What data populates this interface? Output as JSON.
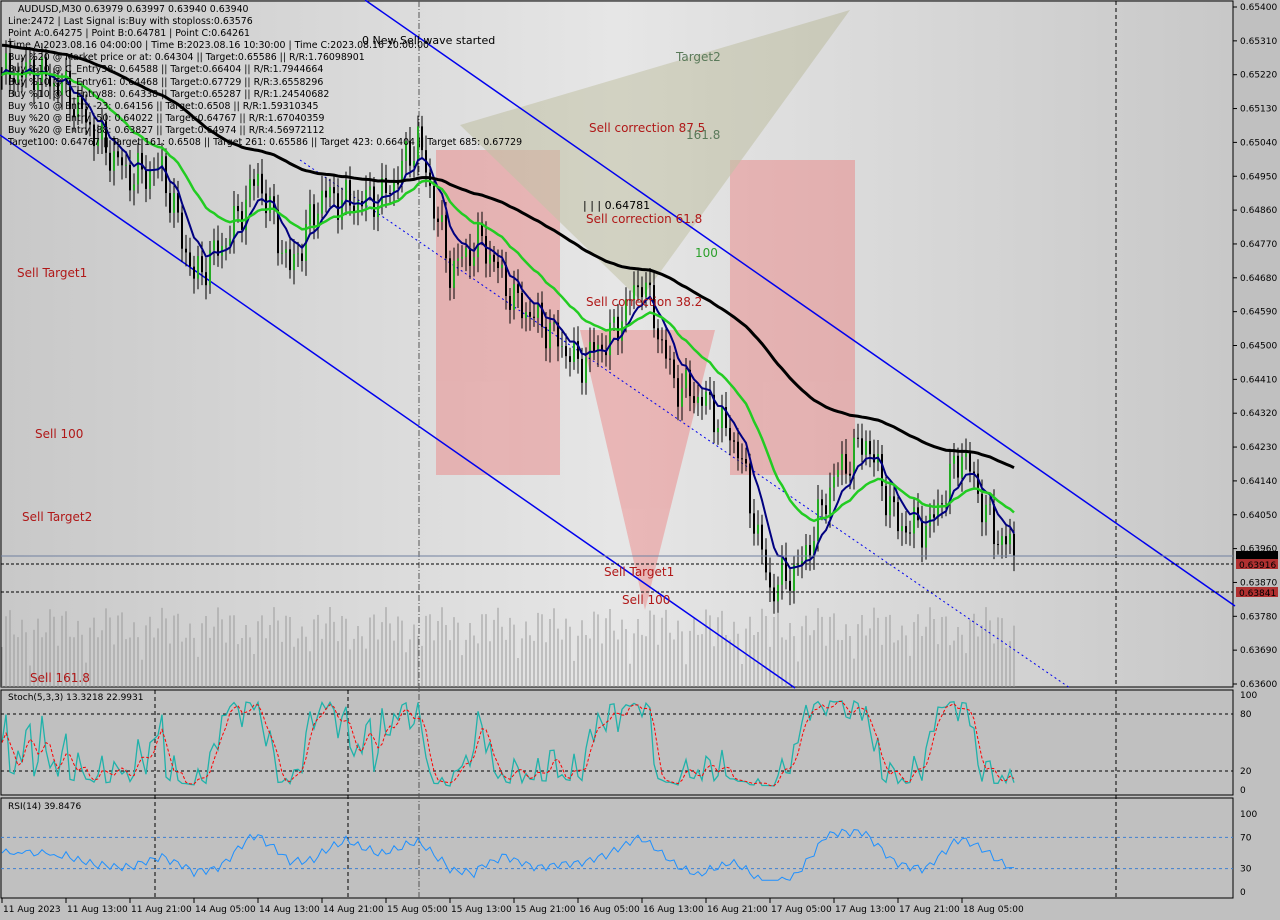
{
  "header": {
    "symbol_line": "AUDUSD,M30  0.63979 0.63997 0.63940 0.63940"
  },
  "info_lines": [
    "Line:2472 | Last Signal is:Buy with stoploss:0.63576",
    "Point A:0.64275 | Point B:0.64781 | Point C:0.64261",
    "Time A:2023.08.16 04:00:00 | Time B:2023.08.16 10:30:00 | Time C:2023.08.16 20:00:00",
    "Buy %20 @ Market price or at: 0.64304 || Target:0.65586 || R/R:1.76098901",
    "Buy %10 @ C_Entry38: 0.64588 || Target:0.66404 || R/R:1.7944664",
    "Buy %10 @ C_Entry61: 0.64468 || Target:0.67729 || R/R:3.6558296",
    "Buy %10 @ C_Entry88: 0.64338 || Target:0.65287 || R/R:1.24540682",
    "Buy %10 @ Entry -23: 0.64156 || Target:0.6508 || R/R:1.59310345",
    "Buy %20 @ Entry -50: 0.64022 || Target:0.64767 || R/R:1.67040359",
    "Buy %20 @ Entry -88: 0.63827 || Target:0.64974 || R/R:4.56972112",
    "Target100: 0.64767 || Target 161: 0.6508 || Target 261: 0.65586 || Target 423: 0.66404 || Target 685: 0.67729"
  ],
  "annotations": [
    {
      "text": "0 New Sell wave started",
      "color": "#000000"
    },
    {
      "text": "Target2",
      "color": "#5a7a5a"
    },
    {
      "text": "Sell correction 87.5",
      "color": "#b01818"
    },
    {
      "text": "161.8",
      "color": "#5a7a5a"
    },
    {
      "text": "| | | 0.64781",
      "color": "#000000"
    },
    {
      "text": "Sell correction 61.8",
      "color": "#b01818"
    },
    {
      "text": "100",
      "color": "#2aa02a"
    },
    {
      "text": "Sell correction 38.2",
      "color": "#b01818"
    },
    {
      "text": "Sell Target1",
      "color": "#b01818"
    },
    {
      "text": "Sell 100",
      "color": "#b01818"
    },
    {
      "text": "Sell Target2",
      "color": "#b01818"
    },
    {
      "text": "Sell Target1",
      "color": "#b01818"
    },
    {
      "text": "Sell 100",
      "color": "#b01818"
    },
    {
      "text": "Sell 161.8",
      "color": "#b01818"
    }
  ],
  "chart_data": {
    "type": "candlestick",
    "symbol": "AUDUSD",
    "timeframe": "M30",
    "ylim": [
      0.636,
      0.654
    ],
    "y_ticks": [
      "0.65400",
      "0.65310",
      "0.65220",
      "0.65130",
      "0.65040",
      "0.64950",
      "0.64860",
      "0.64770",
      "0.64680",
      "0.64590",
      "0.64500",
      "0.64410",
      "0.64320",
      "0.64230",
      "0.64140",
      "0.64050",
      "0.63960",
      "0.63870",
      "0.63780",
      "0.63690",
      "0.63600"
    ],
    "price_tags": [
      {
        "value": "0.63940",
        "color": "#000000"
      },
      {
        "value": "0.63916",
        "color": "#b03030"
      },
      {
        "value": "0.63841",
        "color": "#b03030"
      }
    ],
    "x_ticks": [
      "11 Aug 2023",
      "11 Aug 13:00",
      "11 Aug 21:00",
      "14 Aug 05:00",
      "14 Aug 13:00",
      "14 Aug 21:00",
      "15 Aug 05:00",
      "15 Aug 13:00",
      "15 Aug 21:00",
      "16 Aug 05:00",
      "16 Aug 13:00",
      "16 Aug 21:00",
      "17 Aug 05:00",
      "17 Aug 13:00",
      "17 Aug 21:00",
      "18 Aug 05:00"
    ],
    "approx_close_every_4h": [
      0.6522,
      0.6523,
      0.6518,
      0.6505,
      0.6495,
      0.6497,
      0.6468,
      0.6478,
      0.6495,
      0.647,
      0.649,
      0.6488,
      0.649,
      0.6505,
      0.647,
      0.6478,
      0.6462,
      0.6455,
      0.6445,
      0.6452,
      0.6468,
      0.644,
      0.6435,
      0.6423,
      0.6385,
      0.6392,
      0.6415,
      0.6425,
      0.6402,
      0.6402,
      0.6422,
      0.64,
      0.6394
    ],
    "ma_colors": {
      "fast": "#000080",
      "mid": "#22cc22",
      "slow": "#000000"
    },
    "stoch": {
      "label": "Stoch(5,3,3) 13.3218 22.9931",
      "levels": [
        80,
        20
      ],
      "ticks": [
        "100",
        "80",
        "20",
        "0"
      ],
      "colors": {
        "main": "#20b2aa",
        "signal": "#ff0000"
      }
    },
    "rsi": {
      "label": "RSI(14) 39.8476",
      "levels": [
        70,
        30
      ],
      "ticks": [
        "100",
        "70",
        "30",
        "0"
      ],
      "color": "#1e90ff"
    }
  }
}
